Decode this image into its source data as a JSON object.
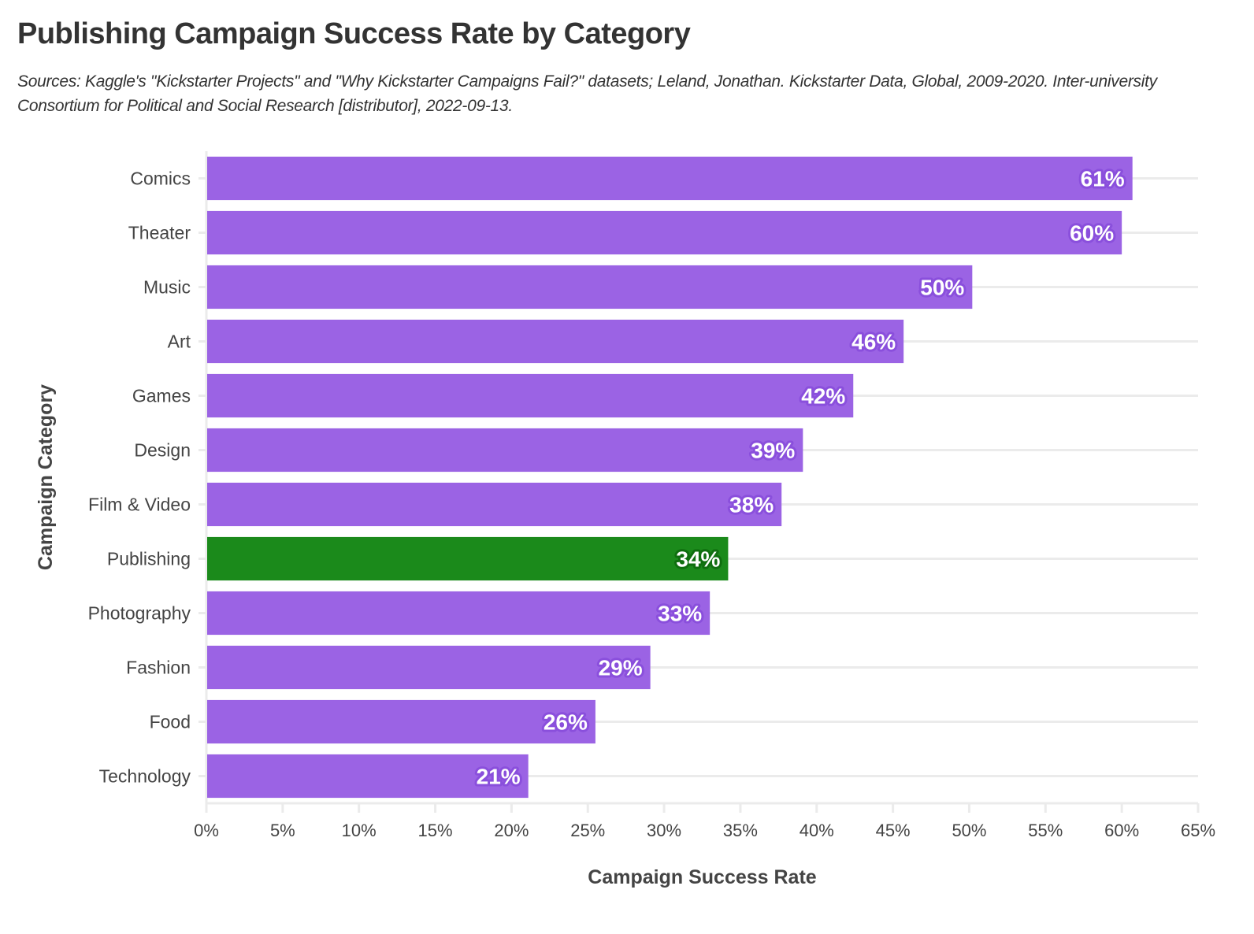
{
  "chart_data": {
    "type": "bar",
    "orientation": "horizontal",
    "title": "Publishing Campaign Success Rate by Category",
    "subtitle": "Sources: Kaggle's \"Kickstarter Projects\" and \"Why Kickstarter Campaigns Fail?\" datasets; Leland, Jonathan. Kickstarter Data, Global, 2009-2020. Inter-university Consortium for Political and Social Research [distributor], 2022-09-13.",
    "xlabel": "Campaign Success Rate",
    "ylabel": "Campaign Category",
    "xlim": [
      0,
      65
    ],
    "x_ticks": [
      0,
      5,
      10,
      15,
      20,
      25,
      30,
      35,
      40,
      45,
      50,
      55,
      60,
      65
    ],
    "x_tick_format": "{v}%",
    "grid": "horizontal lines per category",
    "categories": [
      "Comics",
      "Theater",
      "Music",
      "Art",
      "Games",
      "Design",
      "Film & Video",
      "Publishing",
      "Photography",
      "Fashion",
      "Food",
      "Technology"
    ],
    "values": [
      60.7,
      60.0,
      50.2,
      45.7,
      42.4,
      39.1,
      37.7,
      34.2,
      33.0,
      29.1,
      25.5,
      21.1
    ],
    "labels": [
      "61%",
      "60%",
      "50%",
      "46%",
      "42%",
      "39%",
      "38%",
      "34%",
      "33%",
      "29%",
      "26%",
      "21%"
    ],
    "highlight": "Publishing",
    "colors": {
      "default": "#9b63e4",
      "default_label_outline": "#8a4fdc",
      "highlight": "#1b8a1b",
      "highlight_label_outline": "#0f6e0f",
      "grid": "#ebebeb",
      "text": "#444444"
    }
  }
}
